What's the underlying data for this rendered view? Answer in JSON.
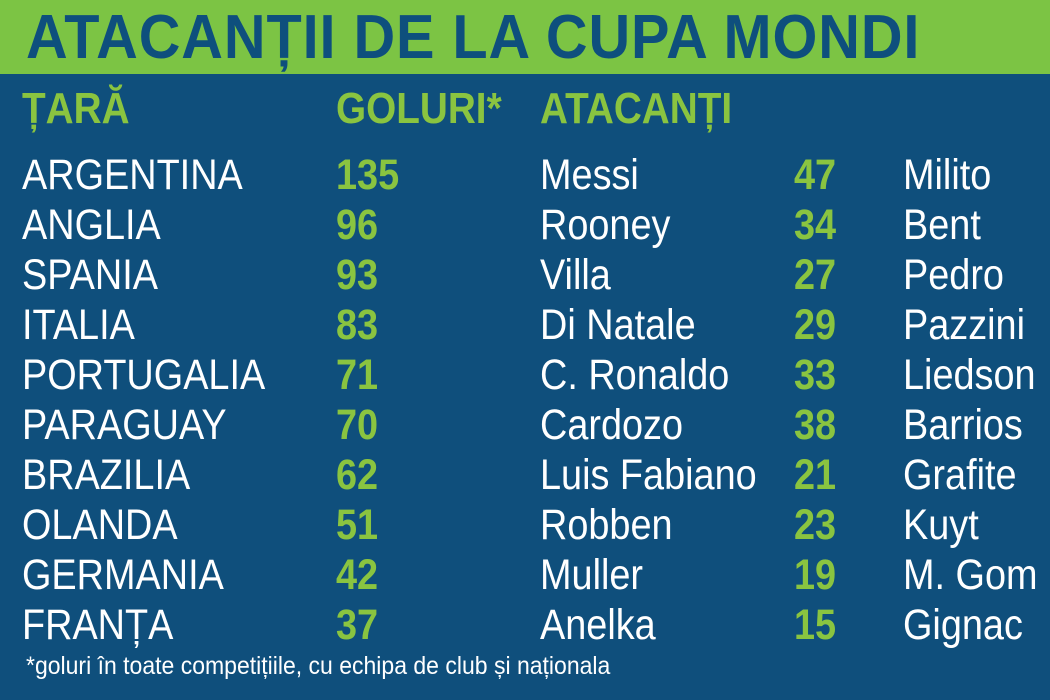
{
  "title": "ATACANȚII DE LA CUPA MONDI",
  "headers": {
    "country": "ȚARĂ",
    "goals": "GOLURI*",
    "strikers": "ATACANȚI"
  },
  "rows": [
    {
      "country": "ARGENTINA",
      "goals": "135",
      "striker1": "Messi",
      "striker1_goals": "47",
      "striker2": "Milito"
    },
    {
      "country": "ANGLIA",
      "goals": "96",
      "striker1": "Rooney",
      "striker1_goals": "34",
      "striker2": "Bent"
    },
    {
      "country": "SPANIA",
      "goals": "93",
      "striker1": "Villa",
      "striker1_goals": "27",
      "striker2": "Pedro"
    },
    {
      "country": "ITALIA",
      "goals": "83",
      "striker1": "Di Natale",
      "striker1_goals": "29",
      "striker2": "Pazzini"
    },
    {
      "country": "PORTUGALIA",
      "goals": "71",
      "striker1": "C. Ronaldo",
      "striker1_goals": "33",
      "striker2": "Liedson"
    },
    {
      "country": "PARAGUAY",
      "goals": "70",
      "striker1": "Cardozo",
      "striker1_goals": "38",
      "striker2": "Barrios"
    },
    {
      "country": "BRAZILIA",
      "goals": "62",
      "striker1": "Luis Fabiano",
      "striker1_goals": "21",
      "striker2": "Grafite"
    },
    {
      "country": "OLANDA",
      "goals": "51",
      "striker1": "Robben",
      "striker1_goals": "23",
      "striker2": "Kuyt"
    },
    {
      "country": "GERMANIA",
      "goals": "42",
      "striker1": "Muller",
      "striker1_goals": "19",
      "striker2": "M. Gom"
    },
    {
      "country": "FRANȚA",
      "goals": "37",
      "striker1": "Anelka",
      "striker1_goals": "15",
      "striker2": "Gignac"
    }
  ],
  "footnote": "*goluri în toate competițiile, cu echipa de club și naționala",
  "colors": {
    "background": "#0f4f7c",
    "banner": "#7cc444",
    "accent_green": "#8ac440",
    "text_white": "#ffffff"
  }
}
